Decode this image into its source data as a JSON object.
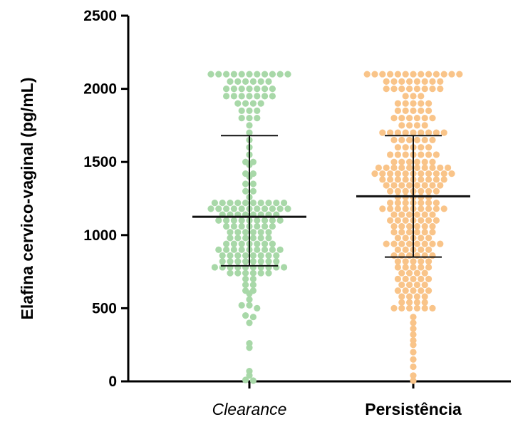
{
  "chart_data": {
    "type": "scatter",
    "subtype": "dot-plot with mean and SD bars",
    "ylabel": "Elafina cervico-vaginal (pg/mL)",
    "xlabel": "",
    "ylim": [
      0,
      2500
    ],
    "yticks": [
      0,
      500,
      1000,
      1500,
      2000,
      2500
    ],
    "yticks_labels": [
      "0",
      "500",
      "1000",
      "1500",
      "2000",
      "2500"
    ],
    "categories": [
      "Clearance",
      "Persistência"
    ],
    "category_styles": [
      "italic",
      "bold"
    ],
    "grid": false,
    "legend": "none",
    "series": [
      {
        "category": "Clearance",
        "color": "#a8d8a8",
        "mean": 1125,
        "sd_upper": 1680,
        "sd_lower": 790,
        "values": [
          2100,
          2100,
          2100,
          2100,
          2100,
          2100,
          2100,
          2100,
          2100,
          2100,
          2100,
          2050,
          2050,
          2050,
          2050,
          2050,
          2050,
          2000,
          2000,
          2000,
          2000,
          2000,
          2000,
          2000,
          1950,
          1950,
          1950,
          1950,
          1950,
          1950,
          1950,
          1900,
          1900,
          1900,
          1900,
          1850,
          1850,
          1850,
          1800,
          1800,
          1800,
          1750,
          1700,
          1650,
          1600,
          1550,
          1500,
          1500,
          1480,
          1420,
          1420,
          1400,
          1350,
          1350,
          1300,
          1300,
          1260,
          1220,
          1220,
          1220,
          1220,
          1220,
          1220,
          1220,
          1220,
          1220,
          1220,
          1180,
          1180,
          1180,
          1180,
          1180,
          1180,
          1180,
          1180,
          1180,
          1180,
          1180,
          1140,
          1140,
          1140,
          1140,
          1140,
          1140,
          1140,
          1140,
          1100,
          1100,
          1100,
          1100,
          1100,
          1100,
          1100,
          1100,
          1100,
          1060,
          1060,
          1060,
          1060,
          1060,
          1060,
          1060,
          1020,
          1020,
          1020,
          1020,
          1020,
          1020,
          980,
          980,
          980,
          980,
          980,
          980,
          940,
          940,
          940,
          940,
          940,
          940,
          940,
          900,
          900,
          900,
          900,
          900,
          900,
          900,
          900,
          900,
          860,
          860,
          860,
          860,
          860,
          860,
          860,
          860,
          820,
          820,
          820,
          820,
          820,
          820,
          820,
          820,
          780,
          780,
          780,
          780,
          780,
          780,
          780,
          780,
          780,
          780,
          740,
          740,
          740,
          740,
          740,
          740,
          700,
          700,
          660,
          660,
          620,
          620,
          600,
          560,
          520,
          520,
          500,
          450,
          440,
          400,
          260,
          230,
          70,
          40,
          10,
          5
        ]
      },
      {
        "category": "Persistência",
        "color": "#f9c489",
        "mean": 1265,
        "sd_upper": 1680,
        "sd_lower": 850,
        "values": [
          2100,
          2100,
          2100,
          2100,
          2100,
          2100,
          2100,
          2100,
          2100,
          2100,
          2100,
          2100,
          2100,
          2050,
          2050,
          2050,
          2050,
          2050,
          2050,
          2050,
          2050,
          2000,
          2000,
          2000,
          2000,
          2000,
          2000,
          2000,
          2000,
          1950,
          1950,
          1950,
          1900,
          1900,
          1900,
          1900,
          1900,
          1850,
          1850,
          1850,
          1850,
          1850,
          1800,
          1800,
          1800,
          1800,
          1800,
          1800,
          1750,
          1750,
          1750,
          1750,
          1700,
          1700,
          1700,
          1700,
          1700,
          1700,
          1700,
          1700,
          1700,
          1650,
          1650,
          1650,
          1650,
          1650,
          1650,
          1600,
          1600,
          1600,
          1600,
          1600,
          1550,
          1550,
          1550,
          1550,
          1550,
          1550,
          1550,
          1500,
          1500,
          1500,
          1500,
          1500,
          1500,
          1460,
          1460,
          1460,
          1460,
          1460,
          1460,
          1460,
          1460,
          1460,
          1460,
          1420,
          1420,
          1420,
          1420,
          1420,
          1420,
          1420,
          1420,
          1420,
          1420,
          1420,
          1380,
          1380,
          1380,
          1380,
          1380,
          1380,
          1380,
          1380,
          1380,
          1340,
          1340,
          1340,
          1340,
          1340,
          1340,
          1340,
          1340,
          1300,
          1300,
          1300,
          1300,
          1300,
          1300,
          1300,
          1260,
          1260,
          1260,
          1260,
          1260,
          1220,
          1220,
          1220,
          1220,
          1220,
          1220,
          1220,
          1180,
          1180,
          1180,
          1180,
          1180,
          1180,
          1180,
          1180,
          1180,
          1140,
          1140,
          1140,
          1140,
          1140,
          1140,
          1100,
          1100,
          1100,
          1100,
          1100,
          1100,
          1100,
          1060,
          1060,
          1060,
          1060,
          1060,
          1060,
          1020,
          1020,
          1020,
          1020,
          1020,
          1020,
          980,
          980,
          980,
          980,
          980,
          940,
          940,
          940,
          940,
          940,
          940,
          940,
          940,
          900,
          900,
          900,
          900,
          900,
          860,
          860,
          860,
          860,
          860,
          860,
          820,
          820,
          820,
          820,
          820,
          780,
          780,
          780,
          780,
          780,
          740,
          740,
          740,
          740,
          700,
          700,
          700,
          700,
          700,
          660,
          660,
          660,
          660,
          620,
          620,
          620,
          620,
          620,
          580,
          580,
          580,
          580,
          540,
          540,
          540,
          540,
          500,
          500,
          500,
          500,
          500,
          500,
          440,
          400,
          360,
          320,
          280,
          250,
          200,
          150,
          100,
          40,
          5
        ]
      }
    ]
  }
}
